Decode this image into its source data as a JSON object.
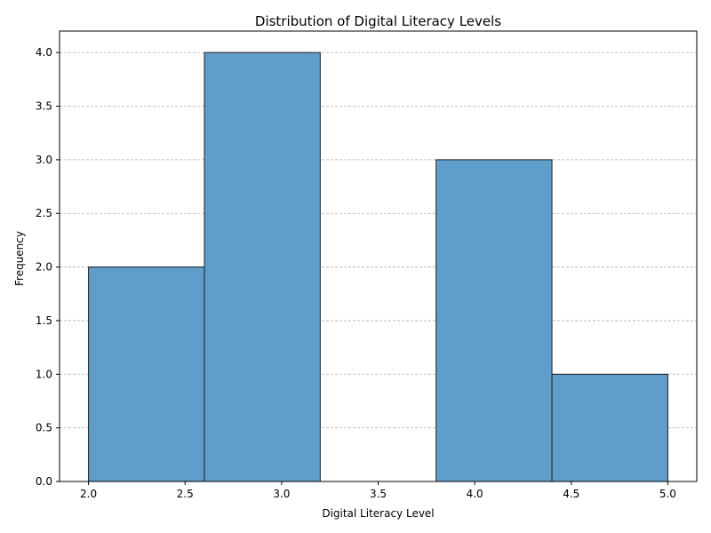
{
  "chart_data": {
    "type": "bar",
    "subtype": "histogram",
    "title": "Distribution of Digital Literacy Levels",
    "xlabel": "Digital Literacy Level",
    "ylabel": "Frequency",
    "bins": [
      {
        "start": 2.0,
        "end": 2.6,
        "count": 2
      },
      {
        "start": 2.6,
        "end": 3.2,
        "count": 4
      },
      {
        "start": 3.2,
        "end": 3.8,
        "count": 0
      },
      {
        "start": 3.8,
        "end": 4.4,
        "count": 3
      },
      {
        "start": 4.4,
        "end": 5.0,
        "count": 1
      }
    ],
    "xlim": [
      1.85,
      5.15
    ],
    "ylim": [
      0,
      4.2
    ],
    "xticks": [
      "2.0",
      "2.5",
      "3.0",
      "3.5",
      "4.0",
      "4.5",
      "5.0"
    ],
    "yticks": [
      "0.0",
      "0.5",
      "1.0",
      "1.5",
      "2.0",
      "2.5",
      "3.0",
      "3.5",
      "4.0"
    ],
    "grid": {
      "axis": "y",
      "style": "dashed"
    },
    "bar_color": "#5f9dcb",
    "edge_color": "#1f1f1f",
    "grid_color": "#b0b0b0"
  }
}
